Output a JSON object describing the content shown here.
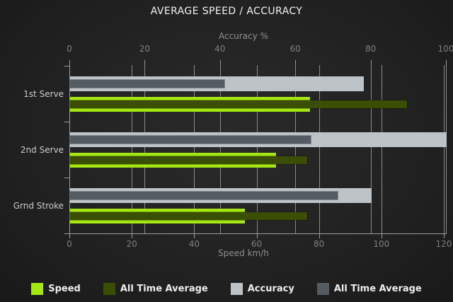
{
  "title": "AVERAGE SPEED / ACCURACY",
  "colors": {
    "speed": "#a5e613",
    "speed_all_time_avg": "#3b4e05",
    "accuracy": "#bdc3c7",
    "accuracy_all_time_avg": "#545b62",
    "gridline": "#8a8a8a",
    "background": "#222222"
  },
  "chart_data": {
    "type": "bar",
    "orientation": "horizontal",
    "title": "AVERAGE SPEED / ACCURACY",
    "categories": [
      "1st Serve",
      "2nd Serve",
      "Grnd Stroke"
    ],
    "top_axis": {
      "label": "Accuracy %",
      "range": [
        0,
        100
      ],
      "ticks": [
        0,
        20,
        40,
        60,
        80,
        100
      ]
    },
    "bottom_axis": {
      "label": "Speed km/h",
      "range": [
        0,
        120
      ],
      "ticks": [
        0,
        20,
        40,
        60,
        80,
        100,
        120
      ]
    },
    "grid": true,
    "legend_position": "bottom",
    "series": [
      {
        "name": "Speed",
        "axis": "bottom",
        "role": "main",
        "color_key": "speed",
        "values": [
          77,
          66,
          56
        ]
      },
      {
        "name": "All Time Average",
        "axis": "bottom",
        "role": "overlay",
        "color_key": "speed_all_time_avg",
        "values": [
          108,
          76,
          76
        ]
      },
      {
        "name": "Accuracy",
        "axis": "top",
        "role": "main",
        "color_key": "accuracy",
        "values": [
          78,
          100,
          80
        ]
      },
      {
        "name": "All Time Average",
        "axis": "top",
        "role": "overlay",
        "color_key": "accuracy_all_time_avg",
        "values": [
          41,
          64,
          71
        ]
      }
    ]
  },
  "legend": {
    "items": [
      {
        "label": "Speed",
        "color_key": "speed"
      },
      {
        "label": "All Time Average",
        "color_key": "speed_all_time_avg"
      },
      {
        "label": "Accuracy",
        "color_key": "accuracy"
      },
      {
        "label": "All Time Average",
        "color_key": "accuracy_all_time_avg"
      }
    ]
  }
}
